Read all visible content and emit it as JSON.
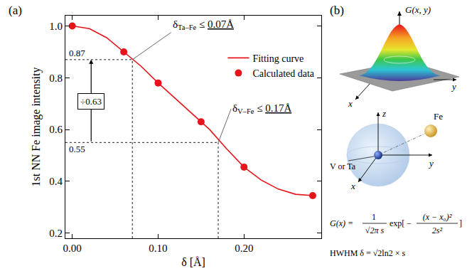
{
  "chart_data": {
    "type": "scatter",
    "panel_label": "(a)",
    "x_label": "δ [Å]",
    "y_label": "1st NN Fe image intensity",
    "series": [
      {
        "name": "Calculated data",
        "type": "scatter",
        "marker": "circle",
        "color": "#e8141b",
        "x": [
          0.0,
          0.06,
          0.1,
          0.15,
          0.2,
          0.28
        ],
        "values": [
          1.0,
          0.9,
          0.78,
          0.63,
          0.455,
          0.345
        ]
      },
      {
        "name": "Fitting curve",
        "type": "line",
        "line_style": "solid",
        "color": "#e8141b",
        "x": [
          0.0,
          0.02,
          0.04,
          0.06,
          0.08,
          0.1,
          0.12,
          0.14,
          0.16,
          0.18,
          0.2,
          0.22,
          0.24,
          0.26,
          0.28
        ],
        "values": [
          1.0,
          0.99,
          0.955,
          0.9,
          0.845,
          0.78,
          0.72,
          0.66,
          0.6,
          0.525,
          0.455,
          0.405,
          0.37,
          0.35,
          0.345
        ]
      }
    ],
    "xlim": [
      -0.008,
      0.29
    ],
    "xticks": [
      {
        "value": 0,
        "label": "0.00"
      },
      {
        "value": 0.1,
        "label": "0.10"
      },
      {
        "value": 0.2,
        "label": "0.20"
      }
    ],
    "ylim": [
      0.18,
      1.04
    ],
    "yticks": [
      0.2,
      0.4,
      0.6,
      0.8,
      {
        "value": 1,
        "label": "1.0"
      }
    ],
    "grid": false,
    "legend": "upper right",
    "reference_lines": [
      {
        "x": 0.07,
        "y": 0.87,
        "label": {
          "symbol": "δ",
          "subscript": "Ta–Fe",
          "relation": "≤",
          "value_text": "0.07Å"
        }
      },
      {
        "x": 0.17,
        "y": 0.55,
        "label": {
          "symbol": "δ",
          "subscript": "V–Fe",
          "relation": "≤",
          "value_text": "0.17Å"
        }
      }
    ],
    "ratio_label": "÷0.63"
  },
  "diagram": {
    "panel_label": "(b)",
    "surface_label": "G(x, y)",
    "surface_axes": {
      "x": "x",
      "y": "y"
    },
    "sphere_axes": {
      "x": "x",
      "y": "y",
      "z": "z"
    },
    "center_atom": "V or Ta",
    "neighbor_atom": "Fe",
    "formula": {
      "lhs": "G(x) =",
      "numerator": "1",
      "denominator": "√2π s",
      "function": "exp[ −",
      "exp_numerator": "(x − x₀)²",
      "exp_denominator": "2s²",
      "close": "]"
    },
    "hwhm": "HWHM δ = √2ln2 × s"
  }
}
